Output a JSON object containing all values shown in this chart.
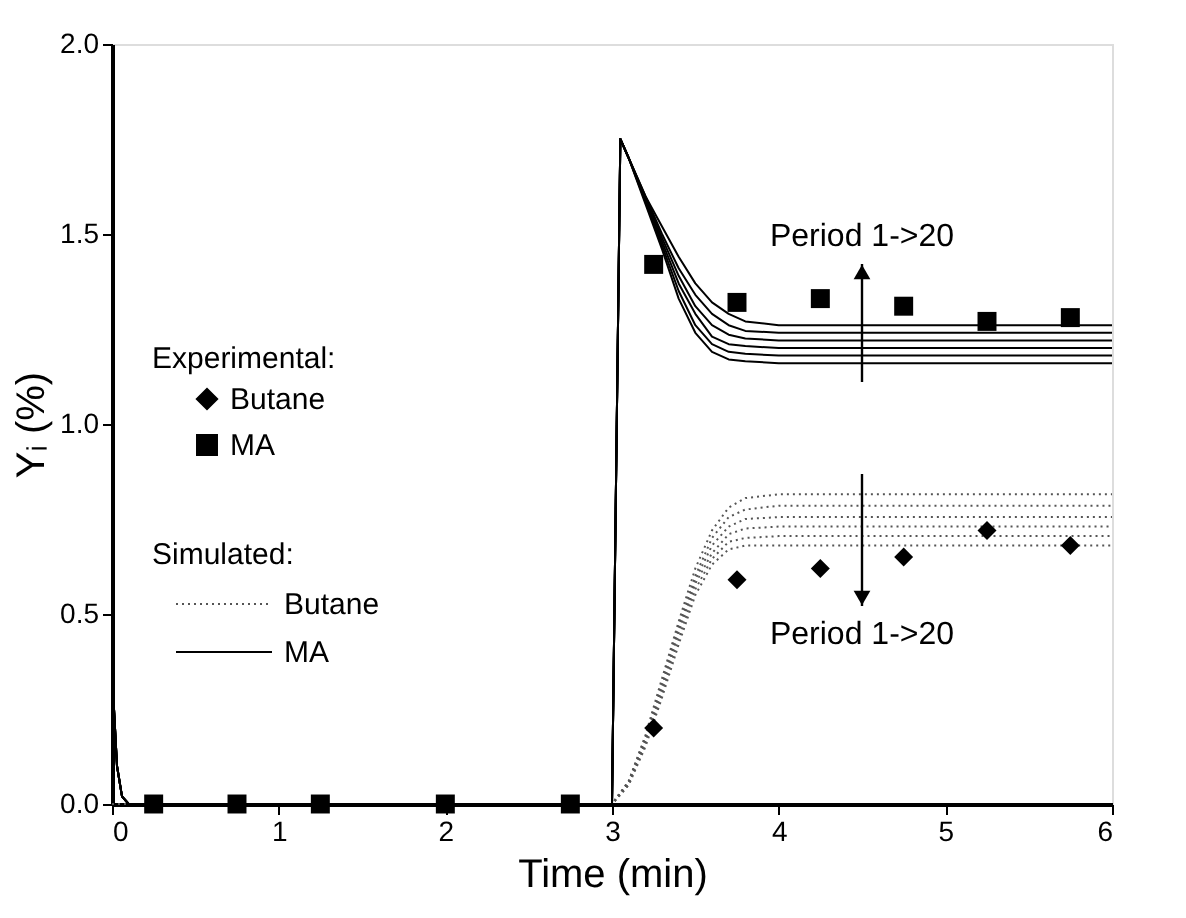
{
  "chart_data": {
    "type": "line",
    "xlabel": "Time (min)",
    "ylabel": "Yᵢ (%)",
    "xlim": [
      0,
      6
    ],
    "ylim": [
      0,
      2.0
    ],
    "xticks": [
      0,
      1,
      2,
      3,
      4,
      5,
      6
    ],
    "yticks": [
      {
        "value": 0,
        "label": "0.0"
      },
      0.5,
      {
        "value": 1,
        "label": "1.0"
      },
      1.5,
      {
        "value": 2,
        "label": "2.0"
      }
    ],
    "grid": false,
    "legend": "left",
    "legend_title": "Experimental:",
    "annotations": [
      "Period 1->20",
      "Period 1->20",
      "Simulated:"
    ],
    "series": [
      {
        "name": "Butane",
        "type": "scatter",
        "marker": "diamond",
        "color": "#000000",
        "x": [
          3.25,
          3.75,
          4.25,
          4.75,
          5.25,
          5.75
        ],
        "values": [
          0.2,
          0.59,
          0.62,
          0.65,
          0.72,
          0.68
        ]
      },
      {
        "name": "MA",
        "type": "scatter",
        "marker": "square",
        "color": "#000000",
        "x": [
          0.25,
          0.75,
          1.25,
          2,
          2.75,
          3.25,
          3.75,
          4.25,
          4.75,
          5.25,
          5.75
        ],
        "values": [
          0,
          0,
          0,
          0,
          0,
          1.42,
          1.32,
          1.33,
          1.31,
          1.27,
          1.28
        ]
      },
      {
        "name": "Butane",
        "line_style": "dotted",
        "color": "#555555",
        "x": [
          0,
          3.0,
          3.1,
          3.2,
          3.3,
          3.4,
          3.5,
          3.6,
          3.7,
          3.8,
          4.0,
          6.0
        ],
        "values": [
          0,
          0,
          0.06,
          0.18,
          0.33,
          0.48,
          0.62,
          0.72,
          0.78,
          0.805,
          0.815,
          0.815
        ]
      },
      {
        "line_style": "dotted",
        "color": "#555555",
        "x": [
          0,
          3.0,
          3.1,
          3.2,
          3.3,
          3.4,
          3.5,
          3.6,
          3.7,
          3.8,
          4.0,
          6.0
        ],
        "values": [
          0,
          0,
          0.06,
          0.175,
          0.32,
          0.47,
          0.6,
          0.7,
          0.755,
          0.775,
          0.785,
          0.785
        ]
      },
      {
        "line_style": "dotted",
        "color": "#555555",
        "x": [
          0,
          3.0,
          3.1,
          3.2,
          3.3,
          3.4,
          3.5,
          3.6,
          3.7,
          3.8,
          4.0,
          6.0
        ],
        "values": [
          0,
          0,
          0.055,
          0.17,
          0.31,
          0.46,
          0.59,
          0.68,
          0.73,
          0.75,
          0.755,
          0.755
        ]
      },
      {
        "line_style": "dotted",
        "color": "#555555",
        "x": [
          0,
          3.0,
          3.1,
          3.2,
          3.3,
          3.4,
          3.5,
          3.6,
          3.7,
          3.8,
          4.0,
          6.0
        ],
        "values": [
          0,
          0,
          0.055,
          0.165,
          0.3,
          0.45,
          0.58,
          0.66,
          0.71,
          0.725,
          0.73,
          0.73
        ]
      },
      {
        "line_style": "dotted",
        "color": "#555555",
        "x": [
          0,
          3.0,
          3.1,
          3.2,
          3.3,
          3.4,
          3.5,
          3.6,
          3.7,
          3.8,
          4.0,
          6.0
        ],
        "values": [
          0,
          0,
          0.05,
          0.16,
          0.29,
          0.435,
          0.565,
          0.645,
          0.69,
          0.7,
          0.705,
          0.705
        ]
      },
      {
        "line_style": "dotted",
        "color": "#555555",
        "x": [
          0,
          3.0,
          3.1,
          3.2,
          3.3,
          3.4,
          3.5,
          3.6,
          3.7,
          3.8,
          4.0,
          6.0
        ],
        "values": [
          0,
          0,
          0.05,
          0.15,
          0.28,
          0.42,
          0.55,
          0.63,
          0.67,
          0.68,
          0.68,
          0.68
        ]
      },
      {
        "name": "MA",
        "line_style": "solid",
        "color": "#000000",
        "x": [
          0,
          0.03,
          0.06,
          0.1,
          2.99,
          3.0,
          3.05,
          3.1,
          3.2,
          3.3,
          3.4,
          3.5,
          3.6,
          3.7,
          3.8,
          4.0,
          4.5,
          6.0
        ],
        "values": [
          0.35,
          0.1,
          0.02,
          0,
          0,
          0,
          1.75,
          1.7,
          1.58,
          1.46,
          1.33,
          1.24,
          1.19,
          1.17,
          1.165,
          1.16,
          1.16,
          1.16
        ]
      },
      {
        "line_style": "solid",
        "color": "#000000",
        "x": [
          0,
          0.03,
          0.06,
          0.1,
          2.99,
          3.0,
          3.05,
          3.1,
          3.2,
          3.3,
          3.4,
          3.5,
          3.6,
          3.7,
          3.8,
          4.0,
          4.5,
          6.0
        ],
        "values": [
          0.35,
          0.1,
          0.02,
          0,
          0,
          0,
          1.75,
          1.7,
          1.585,
          1.47,
          1.35,
          1.26,
          1.21,
          1.19,
          1.185,
          1.18,
          1.18,
          1.18
        ]
      },
      {
        "line_style": "solid",
        "color": "#000000",
        "x": [
          0,
          0.03,
          0.06,
          0.1,
          2.99,
          3.0,
          3.05,
          3.1,
          3.2,
          3.3,
          3.4,
          3.5,
          3.6,
          3.7,
          3.8,
          4.0,
          4.5,
          6.0
        ],
        "values": [
          0.35,
          0.1,
          0.02,
          0,
          0,
          0,
          1.75,
          1.7,
          1.59,
          1.48,
          1.37,
          1.29,
          1.23,
          1.21,
          1.205,
          1.2,
          1.2,
          1.2
        ]
      },
      {
        "line_style": "solid",
        "color": "#000000",
        "x": [
          0,
          0.03,
          0.06,
          0.1,
          2.99,
          3.0,
          3.05,
          3.1,
          3.2,
          3.3,
          3.4,
          3.5,
          3.6,
          3.7,
          3.8,
          4.0,
          4.5,
          6.0
        ],
        "values": [
          0.35,
          0.1,
          0.02,
          0,
          0,
          0,
          1.75,
          1.7,
          1.595,
          1.49,
          1.39,
          1.31,
          1.26,
          1.235,
          1.225,
          1.22,
          1.22,
          1.22
        ]
      },
      {
        "line_style": "solid",
        "color": "#000000",
        "x": [
          0,
          0.03,
          0.06,
          0.1,
          2.99,
          3.0,
          3.05,
          3.1,
          3.2,
          3.3,
          3.4,
          3.5,
          3.6,
          3.7,
          3.8,
          4.0,
          4.5,
          6.0
        ],
        "values": [
          0.35,
          0.1,
          0.02,
          0,
          0,
          0,
          1.75,
          1.7,
          1.6,
          1.5,
          1.41,
          1.34,
          1.29,
          1.26,
          1.245,
          1.24,
          1.24,
          1.24
        ]
      },
      {
        "line_style": "solid",
        "color": "#000000",
        "x": [
          0,
          0.03,
          0.06,
          0.1,
          2.99,
          3.0,
          3.05,
          3.1,
          3.2,
          3.3,
          3.4,
          3.5,
          3.6,
          3.7,
          3.8,
          4.0,
          4.5,
          6.0
        ],
        "values": [
          0.35,
          0.1,
          0.02,
          0,
          0,
          0,
          1.75,
          1.7,
          1.6,
          1.52,
          1.44,
          1.37,
          1.32,
          1.29,
          1.27,
          1.26,
          1.26,
          1.26
        ]
      }
    ]
  }
}
